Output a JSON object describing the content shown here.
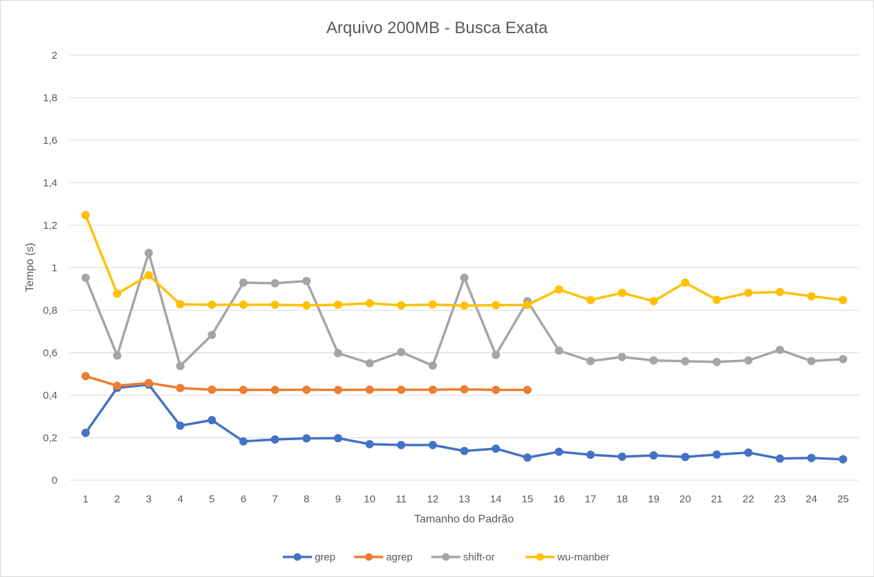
{
  "chart_data": {
    "type": "line",
    "title": "Arquivo 200MB - Busca Exata",
    "xlabel": "Tamanho do Padrão",
    "ylabel": "Tempo (s)",
    "ylim": [
      0,
      2
    ],
    "yticks": [
      "0",
      "0,2",
      "0,4",
      "0,6",
      "0,8",
      "1",
      "1,2",
      "1,4",
      "1,6",
      "1,8",
      "2"
    ],
    "categories": [
      "1",
      "2",
      "3",
      "4",
      "5",
      "6",
      "7",
      "8",
      "9",
      "10",
      "11",
      "12",
      "13",
      "14",
      "15",
      "16",
      "17",
      "18",
      "19",
      "20",
      "21",
      "22",
      "23",
      "24",
      "25"
    ],
    "grid": "horizontal",
    "legend_position": "bottom",
    "series": [
      {
        "name": "grep",
        "color": "#4472c4",
        "values": [
          0.223,
          0.435,
          0.45,
          0.257,
          0.283,
          0.183,
          0.192,
          0.197,
          0.198,
          0.17,
          0.166,
          0.166,
          0.138,
          0.149,
          0.107,
          0.134,
          0.12,
          0.111,
          0.117,
          0.11,
          0.121,
          0.13,
          0.102,
          0.105,
          0.099
        ]
      },
      {
        "name": "agrep",
        "color": "#ed7d31",
        "values": [
          0.49,
          0.445,
          0.458,
          0.434,
          0.426,
          0.425,
          0.425,
          0.426,
          0.425,
          0.426,
          0.426,
          0.426,
          0.428,
          0.425,
          0.425,
          null,
          null,
          null,
          null,
          null,
          null,
          null,
          null,
          null,
          null
        ]
      },
      {
        "name": "shift-or",
        "color": "#a5a5a5",
        "values": [
          0.953,
          0.587,
          1.07,
          0.538,
          0.684,
          0.93,
          0.927,
          0.938,
          0.598,
          0.551,
          0.603,
          0.54,
          0.953,
          0.59,
          0.843,
          0.61,
          0.561,
          0.58,
          0.564,
          0.56,
          0.557,
          0.564,
          0.614,
          0.561,
          0.57
        ]
      },
      {
        "name": "wu-manber",
        "color": "#ffc000",
        "values": [
          1.248,
          0.878,
          0.965,
          0.828,
          0.826,
          0.826,
          0.826,
          0.823,
          0.826,
          0.833,
          0.823,
          0.827,
          0.822,
          0.824,
          0.825,
          0.898,
          0.848,
          0.882,
          0.843,
          0.93,
          0.849,
          0.882,
          0.886,
          0.866,
          0.848
        ]
      }
    ]
  }
}
